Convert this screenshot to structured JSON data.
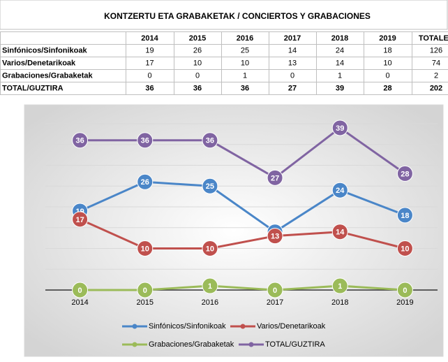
{
  "table": {
    "title": "KONTZERTU ETA GRABAKETAK / CONCIERTOS Y GRABACIONES",
    "header": [
      "2014",
      "2015",
      "2016",
      "2017",
      "2018",
      "2019",
      "TOTALES"
    ],
    "rows": [
      [
        "Sinfónicos/Sinfonikoak",
        19,
        26,
        25,
        14,
        24,
        18,
        126
      ],
      [
        "Varios/Denetarikoak",
        17,
        10,
        10,
        13,
        14,
        10,
        74
      ],
      [
        "Grabaciones/Grabaketak",
        0,
        0,
        1,
        0,
        1,
        0,
        2
      ],
      [
        "TOTAL/GUZTIRA",
        36,
        36,
        36,
        27,
        39,
        28,
        202
      ]
    ]
  },
  "chart_data": {
    "type": "line",
    "categories": [
      "2014",
      "2015",
      "2016",
      "2017",
      "2018",
      "2019"
    ],
    "series": [
      {
        "name": "Sinfónicos/Sinfonikoak",
        "color": "#4a86c8",
        "values": [
          19,
          26,
          25,
          14,
          24,
          18
        ]
      },
      {
        "name": "Varios/Denetarikoak",
        "color": "#c0504d",
        "values": [
          17,
          10,
          10,
          13,
          14,
          10
        ]
      },
      {
        "name": "Grabaciones/Grabaketak",
        "color": "#9bbb59",
        "values": [
          0,
          0,
          1,
          0,
          1,
          0
        ]
      },
      {
        "name": "TOTAL/GUZTIRA",
        "color": "#8064a2",
        "values": [
          36,
          36,
          36,
          27,
          39,
          28
        ]
      }
    ],
    "ylim": [
      0,
      40
    ],
    "yticks": [
      0,
      5,
      10,
      15,
      20,
      25,
      30,
      35,
      40
    ],
    "grid": true
  }
}
